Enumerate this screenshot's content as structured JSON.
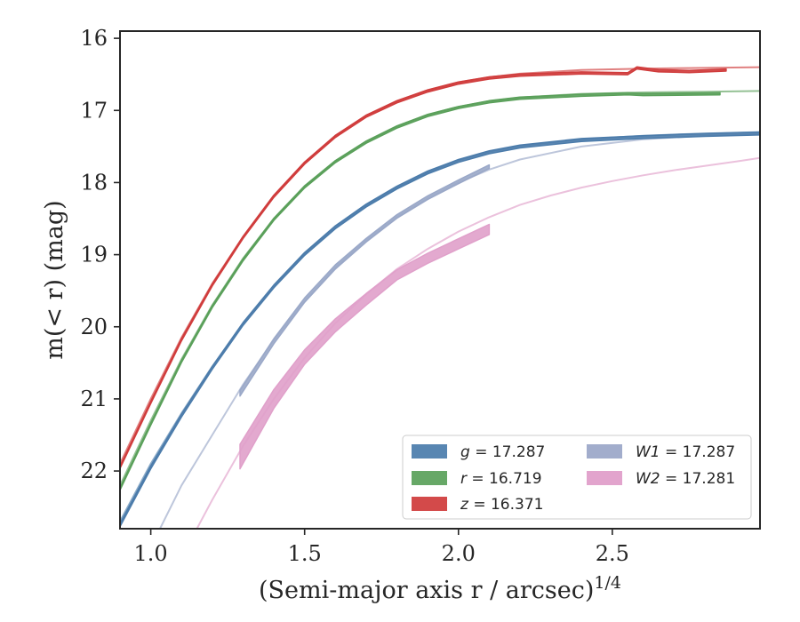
{
  "chart_data": {
    "type": "line",
    "title": "",
    "xlabel": "(Semi-major axis r / arcsec)",
    "xlabel_sup": "1/4",
    "ylabel": "m(< r) (mag)",
    "xlim": [
      0.9,
      2.98
    ],
    "ylim": [
      22.8,
      15.9
    ],
    "y_inverted": true,
    "grid": false,
    "legend_position": "lower-right",
    "x_ticks": [
      1.0,
      1.5,
      2.0,
      2.5
    ],
    "x_tick_labels": [
      "1.0",
      "1.5",
      "2.0",
      "2.5"
    ],
    "y_ticks": [
      16,
      17,
      18,
      19,
      20,
      21,
      22
    ],
    "y_tick_labels": [
      "16",
      "17",
      "18",
      "19",
      "20",
      "21",
      "22"
    ],
    "series": [
      {
        "band": "g",
        "mag": "17.287",
        "color": "#4c7cab",
        "model_x": [
          0.9,
          1.0,
          1.1,
          1.2,
          1.3,
          1.4,
          1.5,
          1.6,
          1.7,
          1.8,
          1.9,
          2.0,
          2.1,
          2.2,
          2.4,
          2.6,
          2.8,
          2.98
        ],
        "model_y": [
          22.7,
          21.9,
          21.2,
          20.55,
          19.95,
          19.43,
          18.98,
          18.62,
          18.32,
          18.07,
          17.86,
          17.69,
          17.57,
          17.49,
          17.4,
          17.35,
          17.32,
          17.3
        ],
        "data_x": [
          0.9,
          1.0,
          1.1,
          1.2,
          1.3,
          1.4,
          1.5,
          1.6,
          1.7,
          1.8,
          1.9,
          2.0,
          2.1,
          2.2,
          2.4,
          2.6,
          2.8,
          2.98
        ],
        "data_y": [
          22.75,
          21.95,
          21.23,
          20.57,
          19.96,
          19.44,
          18.99,
          18.62,
          18.32,
          18.07,
          17.86,
          17.7,
          17.58,
          17.5,
          17.41,
          17.37,
          17.34,
          17.32
        ],
        "data_err": [
          0.02,
          0.02,
          0.02,
          0.02,
          0.02,
          0.02,
          0.02,
          0.02,
          0.02,
          0.02,
          0.02,
          0.02,
          0.02,
          0.02,
          0.02,
          0.02,
          0.02,
          0.02
        ]
      },
      {
        "band": "r",
        "mag": "16.719",
        "color": "#5aa05a",
        "model_x": [
          0.9,
          1.0,
          1.1,
          1.2,
          1.3,
          1.4,
          1.5,
          1.6,
          1.7,
          1.8,
          1.9,
          2.0,
          2.1,
          2.2,
          2.4,
          2.6,
          2.8,
          2.98
        ],
        "model_y": [
          22.2,
          21.3,
          20.45,
          19.7,
          19.05,
          18.5,
          18.05,
          17.7,
          17.43,
          17.22,
          17.06,
          16.95,
          16.87,
          16.82,
          16.77,
          16.75,
          16.74,
          16.73
        ],
        "data_x": [
          0.9,
          1.0,
          1.1,
          1.2,
          1.3,
          1.4,
          1.5,
          1.6,
          1.7,
          1.8,
          1.9,
          2.0,
          2.1,
          2.2,
          2.4,
          2.55,
          2.6,
          2.85
        ],
        "data_y": [
          22.25,
          21.35,
          20.48,
          19.72,
          19.07,
          18.51,
          18.06,
          17.71,
          17.44,
          17.23,
          17.07,
          16.96,
          16.88,
          16.83,
          16.79,
          16.77,
          16.78,
          16.77
        ],
        "data_err": [
          0.015,
          0.015,
          0.015,
          0.015,
          0.015,
          0.015,
          0.015,
          0.015,
          0.015,
          0.015,
          0.015,
          0.015,
          0.015,
          0.015,
          0.015,
          0.015,
          0.015,
          0.015
        ]
      },
      {
        "band": "z",
        "mag": "16.371",
        "color": "#d03c3c",
        "model_x": [
          0.9,
          1.0,
          1.1,
          1.2,
          1.3,
          1.4,
          1.5,
          1.6,
          1.7,
          1.8,
          1.9,
          2.0,
          2.1,
          2.2,
          2.4,
          2.6,
          2.8,
          2.98
        ],
        "model_y": [
          21.9,
          21.0,
          20.15,
          19.4,
          18.75,
          18.18,
          17.72,
          17.35,
          17.07,
          16.87,
          16.72,
          16.61,
          16.54,
          16.49,
          16.44,
          16.42,
          16.41,
          16.4
        ],
        "data_x": [
          0.9,
          1.0,
          1.1,
          1.2,
          1.3,
          1.4,
          1.5,
          1.6,
          1.7,
          1.8,
          1.9,
          2.0,
          2.1,
          2.2,
          2.4,
          2.55,
          2.58,
          2.65,
          2.75,
          2.87
        ],
        "data_y": [
          21.95,
          21.05,
          20.18,
          19.42,
          18.76,
          18.19,
          17.73,
          17.36,
          17.08,
          16.88,
          16.73,
          16.62,
          16.55,
          16.51,
          16.48,
          16.49,
          16.41,
          16.45,
          16.46,
          16.44
        ],
        "data_err": [
          0.015,
          0.015,
          0.015,
          0.015,
          0.015,
          0.015,
          0.015,
          0.015,
          0.015,
          0.015,
          0.015,
          0.015,
          0.015,
          0.015,
          0.015,
          0.015,
          0.015,
          0.015,
          0.015,
          0.015
        ]
      },
      {
        "band": "W1",
        "mag": "17.287",
        "color": "#9aa8c8",
        "model_x": [
          1.03,
          1.1,
          1.2,
          1.3,
          1.4,
          1.5,
          1.6,
          1.7,
          1.8,
          1.9,
          2.0,
          2.1,
          2.2,
          2.4,
          2.6,
          2.8,
          2.98
        ],
        "model_y": [
          22.8,
          22.2,
          21.5,
          20.8,
          20.18,
          19.65,
          19.18,
          18.8,
          18.48,
          18.22,
          18.0,
          17.82,
          17.68,
          17.5,
          17.4,
          17.35,
          17.33
        ],
        "data_x": [
          1.29,
          1.4,
          1.5,
          1.6,
          1.7,
          1.8,
          1.9,
          2.0,
          2.1
        ],
        "data_y": [
          20.92,
          20.2,
          19.63,
          19.17,
          18.8,
          18.47,
          18.21,
          17.99,
          17.78
        ],
        "data_err": [
          0.04,
          0.035,
          0.03,
          0.03,
          0.025,
          0.025,
          0.025,
          0.025,
          0.025
        ]
      },
      {
        "band": "W2",
        "mag": "17.281",
        "color": "#e0a0ca",
        "model_x": [
          1.15,
          1.2,
          1.3,
          1.4,
          1.5,
          1.6,
          1.7,
          1.8,
          1.9,
          2.0,
          2.1,
          2.2,
          2.3,
          2.4,
          2.5,
          2.6,
          2.7,
          2.8,
          2.9,
          2.98
        ],
        "model_y": [
          22.8,
          22.4,
          21.65,
          21.0,
          20.43,
          19.95,
          19.55,
          19.2,
          18.92,
          18.68,
          18.48,
          18.31,
          18.18,
          18.07,
          17.98,
          17.9,
          17.83,
          17.77,
          17.71,
          17.66
        ],
        "data_x": [
          1.29,
          1.4,
          1.5,
          1.6,
          1.7,
          1.8,
          1.9,
          2.0,
          2.1
        ],
        "data_y": [
          21.8,
          21.0,
          20.42,
          19.98,
          19.62,
          19.28,
          19.05,
          18.85,
          18.65
        ],
        "data_err": [
          0.17,
          0.13,
          0.1,
          0.09,
          0.08,
          0.07,
          0.07,
          0.07,
          0.07
        ]
      }
    ],
    "legend": [
      {
        "var": "g",
        "text": " = 17.287",
        "color": "#5886b2"
      },
      {
        "var": "r",
        "text": " = 16.719",
        "color": "#67a867"
      },
      {
        "var": "z",
        "text": " = 16.371",
        "color": "#d34a4a"
      },
      {
        "var": "W1",
        "text": " = 17.287",
        "color": "#a2adcc"
      },
      {
        "var": "W2",
        "text": " = 17.281",
        "color": "#e2a4cd"
      }
    ]
  }
}
